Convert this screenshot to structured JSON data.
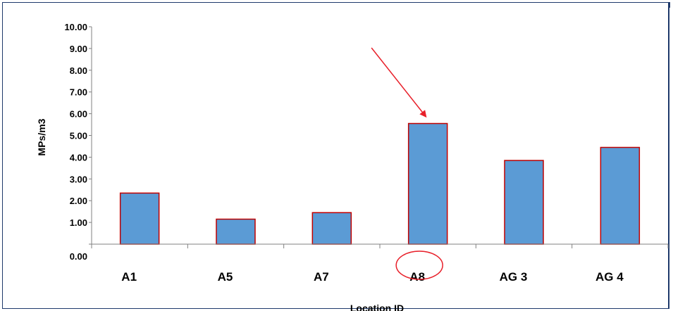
{
  "chart_data": {
    "type": "bar",
    "categories": [
      "A1",
      "A5",
      "A7",
      "A8",
      "AG 3",
      "AG 4"
    ],
    "values": [
      2.35,
      1.15,
      1.45,
      5.55,
      3.85,
      4.45
    ],
    "ylabel": "MPs/m3",
    "xlabel": "Location ID",
    "ylim": [
      0,
      10
    ],
    "yticks": [
      "0.00",
      "1.00",
      "2.00",
      "3.00",
      "4.00",
      "5.00",
      "6.00",
      "7.00",
      "8.00",
      "9.00",
      "10.00"
    ],
    "grid": false,
    "legend": "none",
    "annotations": [
      "red arrow pointing to A8 bar",
      "red circle around A8 label"
    ]
  },
  "colors": {
    "bar_fill": "#5b9bd5",
    "bar_stroke": "#c00000",
    "annotation": "#e8202a",
    "frame": "#1f3a6b"
  }
}
